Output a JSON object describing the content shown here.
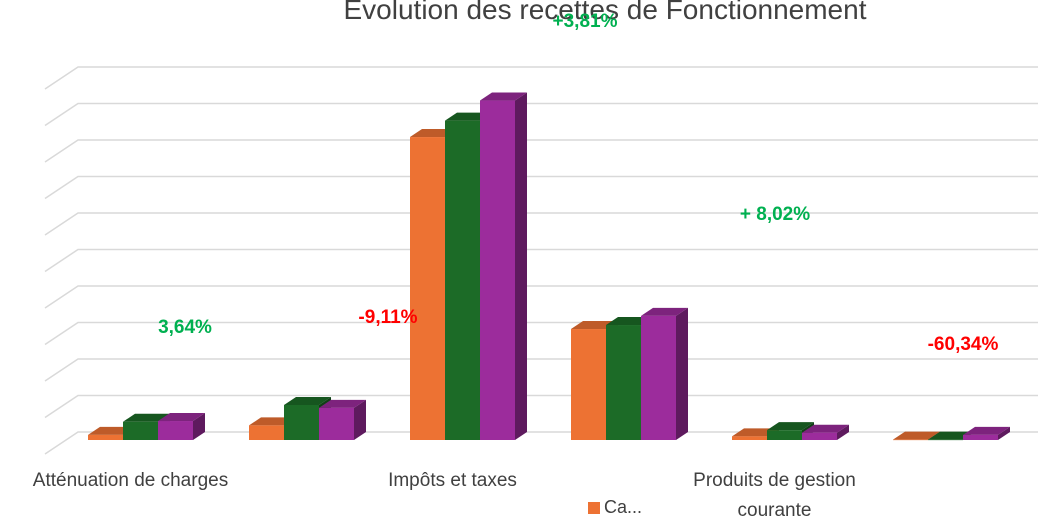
{
  "chart_data": {
    "type": "bar3d",
    "title": "Évolution des recettes de Fonctionnement",
    "categories": [
      "Atténuation de charges",
      null,
      "Impôts et taxes",
      null,
      "Produits de gestion courante",
      null
    ],
    "series": [
      {
        "name": "Ca...",
        "color": "#ed7233",
        "values": [
          0.14,
          0.4,
          8.3,
          3.04,
          0.1,
          0.01
        ]
      },
      {
        "color": "#1c6b27",
        "values": [
          0.5,
          0.96,
          8.75,
          3.15,
          0.27,
          0.01
        ]
      },
      {
        "color": "#9c2c9c",
        "values": [
          0.52,
          0.88,
          9.3,
          3.4,
          0.2,
          0.14
        ]
      }
    ],
    "annotations": [
      {
        "text": "3,64%",
        "color": "#00b050"
      },
      {
        "text": "-9,11%",
        "color": "#ff0000"
      },
      {
        "text": "+3,81%",
        "color": "#00b050"
      },
      {
        "text": "+ 8,02%",
        "color": "#00b050"
      },
      {
        "text": "-60,34%",
        "color": "#ff0000"
      }
    ],
    "ylim": [
      0,
      10
    ],
    "yticks": [
      0,
      1,
      2,
      3,
      4,
      5,
      6,
      7,
      8,
      9,
      10
    ],
    "grid": true
  }
}
